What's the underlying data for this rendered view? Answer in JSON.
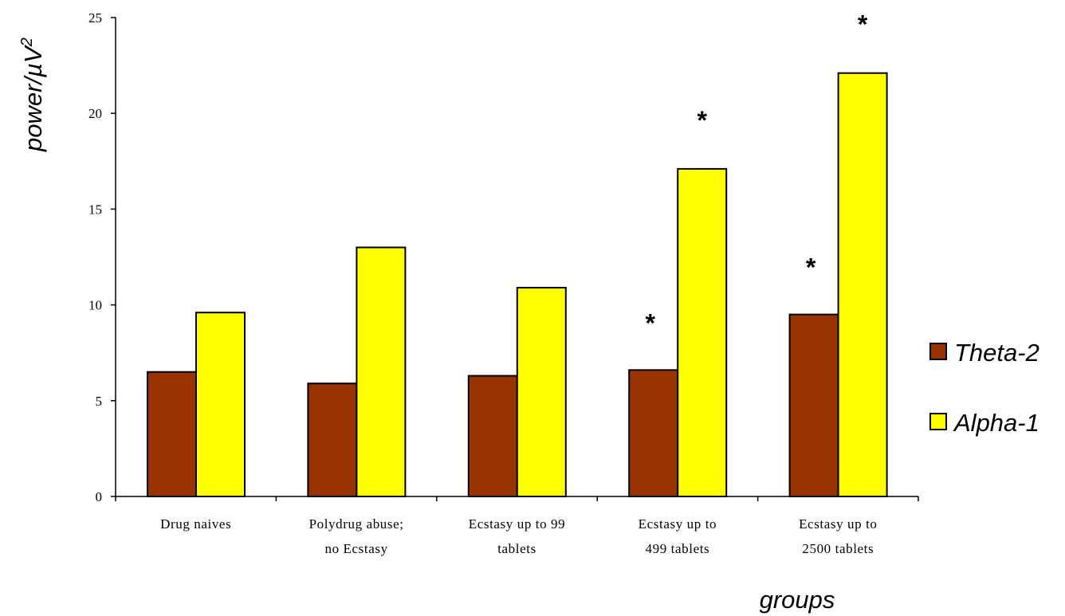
{
  "chart_data": {
    "type": "bar",
    "title": "",
    "xlabel": "groups",
    "ylabel": "power/µV²",
    "ylabel_parts": {
      "base": "power/µV",
      "sup": "2"
    },
    "ylim": [
      0,
      25
    ],
    "yticks": [
      0,
      5,
      10,
      15,
      20,
      25
    ],
    "ytick_labels": [
      "0",
      "5",
      "10",
      "15",
      "20",
      "25"
    ],
    "categories": [
      [
        "Drug naives"
      ],
      [
        "Polydrug abuse;",
        "no Ecstasy"
      ],
      [
        "Ecstasy up to 99",
        "tablets"
      ],
      [
        "Ecstasy up to",
        "499 tablets"
      ],
      [
        "Ecstasy up to",
        "2500 tablets"
      ]
    ],
    "series": [
      {
        "name": "Theta-2",
        "color": "#993300",
        "values": [
          6.5,
          5.9,
          6.3,
          6.6,
          9.5
        ],
        "significant": [
          false,
          false,
          false,
          true,
          true
        ]
      },
      {
        "name": "Alpha-1",
        "color": "#ffff00",
        "values": [
          9.6,
          13.0,
          10.9,
          17.1,
          22.1
        ],
        "significant": [
          false,
          false,
          false,
          true,
          true
        ]
      }
    ],
    "significance_marker": "*",
    "legend": "right",
    "grid": false
  }
}
